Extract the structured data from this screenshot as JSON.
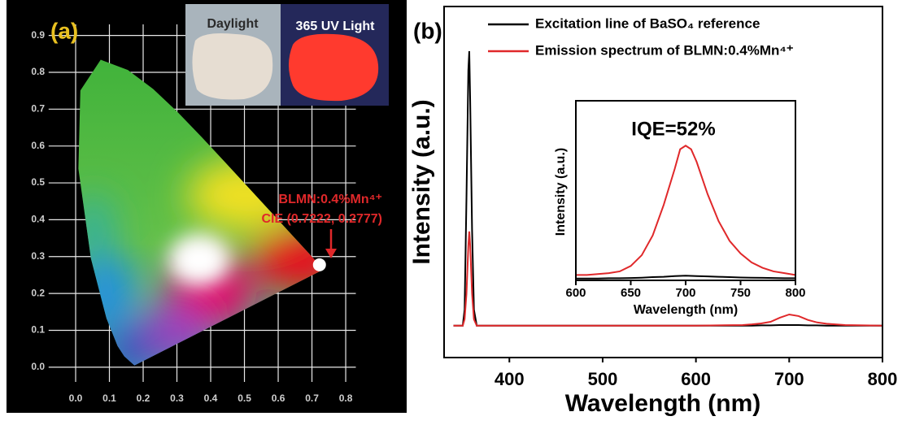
{
  "chart_data": [
    {
      "type": "scatter",
      "panel_label": "(a)",
      "photos": [
        "Daylight",
        "365 UV Light"
      ],
      "annotations": [
        "BLMN:0.4%Mn⁴⁺",
        "CIE (0.7222, 0.2777)"
      ],
      "x": [
        0.7222
      ],
      "values": [
        0.2777
      ],
      "color": "#ffffff",
      "xlim": [
        -0.08,
        0.83
      ],
      "ylim": [
        -0.04,
        0.93
      ],
      "xticks": [
        {
          "value": 0,
          "label": "0.0"
        },
        0.1,
        0.2,
        0.3,
        0.4,
        0.5,
        0.6,
        0.7,
        0.8
      ],
      "yticks": [
        {
          "value": 0,
          "label": "0.0"
        },
        0.1,
        0.2,
        0.3,
        0.4,
        0.5,
        0.6,
        0.7,
        0.8,
        0.9
      ],
      "grid": true
    },
    {
      "type": "line",
      "panel_label": "(b)",
      "xlabel": "Wavelength (nm)",
      "ylabel": "Intensity (a.u.)",
      "x": [
        340,
        350,
        352,
        354,
        356,
        357,
        358,
        360,
        362,
        365,
        400,
        500,
        600,
        650,
        660,
        670,
        680,
        690,
        700,
        710,
        720,
        730,
        740,
        760,
        780,
        800
      ],
      "series": [
        {
          "name": "Excitation line of BaSO₄ reference",
          "color": "#000000",
          "values": [
            0,
            0,
            0.05,
            0.4,
            0.8,
            0.86,
            0.7,
            0.3,
            0.05,
            0,
            0,
            0,
            0,
            0,
            0,
            0.001,
            0.001,
            0.002,
            0.002,
            0.002,
            0.001,
            0.001,
            0,
            0,
            0,
            0
          ]
        },
        {
          "name": "Emission spectrum of BLMN:0.4%Mn⁴⁺",
          "color": "#e0282a",
          "values": [
            0,
            0,
            0.02,
            0.1,
            0.25,
            0.295,
            0.25,
            0.1,
            0.02,
            0,
            0,
            0,
            0,
            0.002,
            0.004,
            0.007,
            0.012,
            0.025,
            0.035,
            0.03,
            0.018,
            0.01,
            0.006,
            0.002,
            0.001,
            0
          ]
        }
      ],
      "xlim": [
        330,
        800
      ],
      "ylim": [
        -0.1,
        1.0
      ],
      "xticks": [
        400,
        500,
        600,
        700,
        800
      ],
      "legend": "upper right"
    },
    {
      "type": "line",
      "annotation": "IQE=52%",
      "xlabel": "Wavelength (nm)",
      "ylabel": "Intensity (a.u.)",
      "x": [
        600,
        610,
        620,
        630,
        640,
        650,
        660,
        670,
        680,
        690,
        695,
        700,
        705,
        710,
        720,
        730,
        740,
        750,
        760,
        770,
        780,
        790,
        800
      ],
      "series": [
        {
          "color": "#000000",
          "values": [
            0.01,
            0.01,
            0.01,
            0.012,
            0.012,
            0.013,
            0.015,
            0.018,
            0.02,
            0.024,
            0.025,
            0.026,
            0.025,
            0.024,
            0.022,
            0.02,
            0.018,
            0.016,
            0.015,
            0.014,
            0.013,
            0.012,
            0.012
          ]
        },
        {
          "color": "#e0282a",
          "values": [
            0.03,
            0.03,
            0.035,
            0.04,
            0.05,
            0.08,
            0.14,
            0.25,
            0.42,
            0.62,
            0.73,
            0.75,
            0.73,
            0.66,
            0.48,
            0.33,
            0.22,
            0.15,
            0.1,
            0.07,
            0.05,
            0.04,
            0.03
          ]
        }
      ],
      "xlim": [
        600,
        800
      ],
      "ylim": [
        0,
        1
      ],
      "xticks": [
        600,
        650,
        700,
        750,
        800
      ]
    }
  ]
}
